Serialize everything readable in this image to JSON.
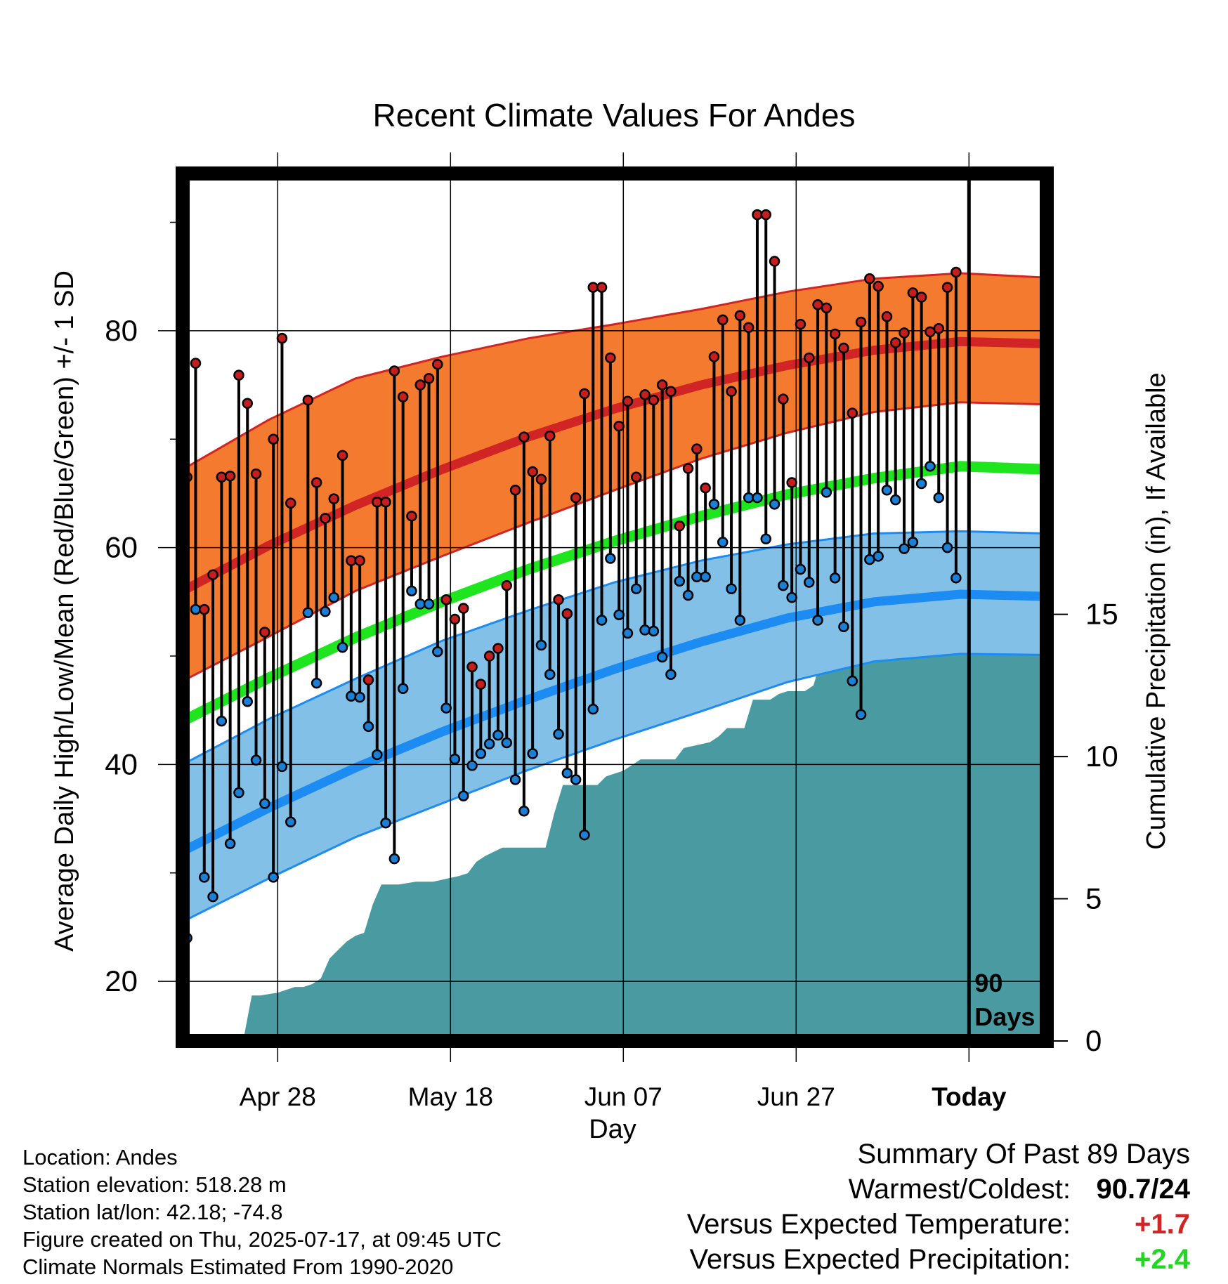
{
  "chart_data": {
    "type": "line",
    "title": "Recent Climate Values For Andes",
    "xlabel": "Day",
    "ylabel_left": "Average Daily High/Low/Mean (Red/Blue/Green) +/- 1 SD",
    "ylabel_right": "Cumulative Precipitation (in), If Available",
    "x_ticks": [
      "Apr 28",
      "May 18",
      "Jun 07",
      "Jun 27",
      "Today"
    ],
    "x_tick_days": [
      11,
      31,
      51,
      71,
      91
    ],
    "x_range_days": [
      0,
      100
    ],
    "today_day": 91,
    "ylim_left": [
      14.5,
      94.5
    ],
    "ylim_right": [
      0,
      30.5
    ],
    "y_ticks_left": [
      20,
      40,
      60,
      80
    ],
    "y_ticks_right": [
      0,
      5,
      10,
      15
    ],
    "today_label_1": "90",
    "today_label_2": "Days",
    "normal_high": [
      [
        0,
        56.0
      ],
      [
        10,
        60.2
      ],
      [
        20,
        63.9
      ],
      [
        30,
        67.2
      ],
      [
        40,
        70.2
      ],
      [
        50,
        72.8
      ],
      [
        60,
        75.0
      ],
      [
        70,
        76.8
      ],
      [
        80,
        78.2
      ],
      [
        90,
        79.0
      ],
      [
        100,
        78.8
      ]
    ],
    "normal_high_band_upper": [
      [
        0,
        67.2
      ],
      [
        10,
        71.8
      ],
      [
        20,
        75.6
      ],
      [
        30,
        77.6
      ],
      [
        40,
        79.3
      ],
      [
        50,
        80.6
      ],
      [
        60,
        82.0
      ],
      [
        70,
        83.6
      ],
      [
        80,
        84.8
      ],
      [
        90,
        85.3
      ],
      [
        100,
        84.9
      ]
    ],
    "normal_high_band_lower": [
      [
        0,
        47.7
      ],
      [
        10,
        51.8
      ],
      [
        20,
        56.0
      ],
      [
        30,
        59.2
      ],
      [
        40,
        62.3
      ],
      [
        50,
        65.3
      ],
      [
        60,
        68.2
      ],
      [
        70,
        70.6
      ],
      [
        80,
        72.5
      ],
      [
        90,
        73.4
      ],
      [
        100,
        73.2
      ]
    ],
    "normal_mean": [
      [
        0,
        44.0
      ],
      [
        10,
        48.0
      ],
      [
        20,
        51.7
      ],
      [
        30,
        55.0
      ],
      [
        40,
        58.0
      ],
      [
        50,
        60.6
      ],
      [
        60,
        62.9
      ],
      [
        70,
        64.9
      ],
      [
        80,
        66.4
      ],
      [
        90,
        67.5
      ],
      [
        100,
        67.2
      ]
    ],
    "normal_low": [
      [
        0,
        32.0
      ],
      [
        10,
        36.0
      ],
      [
        20,
        39.7
      ],
      [
        30,
        43.0
      ],
      [
        40,
        46.0
      ],
      [
        50,
        48.8
      ],
      [
        60,
        51.3
      ],
      [
        70,
        53.5
      ],
      [
        80,
        55.0
      ],
      [
        90,
        55.7
      ],
      [
        100,
        55.5
      ]
    ],
    "normal_low_band_upper": [
      [
        0,
        40.0
      ],
      [
        10,
        44.2
      ],
      [
        20,
        47.9
      ],
      [
        30,
        51.4
      ],
      [
        40,
        54.2
      ],
      [
        50,
        56.8
      ],
      [
        60,
        58.8
      ],
      [
        70,
        60.3
      ],
      [
        80,
        61.3
      ],
      [
        90,
        61.5
      ],
      [
        100,
        61.3
      ]
    ],
    "normal_low_band_lower": [
      [
        0,
        25.5
      ],
      [
        10,
        29.5
      ],
      [
        20,
        33.3
      ],
      [
        30,
        36.4
      ],
      [
        40,
        39.5
      ],
      [
        50,
        42.3
      ],
      [
        60,
        44.9
      ],
      [
        70,
        47.6
      ],
      [
        80,
        49.5
      ],
      [
        90,
        50.2
      ],
      [
        100,
        50.1
      ]
    ],
    "daily_high": [
      66.5,
      77,
      54.3,
      57.5,
      66.5,
      66.6,
      75.9,
      73.3,
      66.8,
      52.2,
      70,
      79.3,
      64.1,
      null,
      73.6,
      66,
      62.7,
      64.5,
      68.5,
      58.8,
      58.8,
      47.8,
      64.2,
      64.2,
      76.3,
      73.9,
      62.9,
      75,
      75.6,
      76.9,
      55.2,
      53.4,
      54.4,
      49,
      47.4,
      50,
      50.7,
      56.5,
      65.3,
      70.2,
      67,
      66.3,
      70.3,
      55.2,
      53.9,
      64.6,
      74.2,
      84,
      84,
      77.5,
      71.2,
      73.5,
      66.5,
      74.1,
      73.6,
      75,
      74.4,
      62,
      67.3,
      69.1,
      65.5,
      77.6,
      81,
      74.4,
      81.4,
      80.3,
      90.7,
      90.7,
      86.4,
      73.7,
      66,
      80.6,
      77.5,
      82.4,
      82.1,
      79.7,
      78.4,
      72.4,
      80.8,
      84.8,
      84.1,
      81.3,
      78.9,
      79.8,
      83.5,
      83.1,
      79.9,
      80.2,
      84,
      85.4
    ],
    "daily_low": [
      24,
      54.3,
      29.6,
      27.8,
      44,
      32.7,
      37.4,
      45.8,
      40.4,
      36.4,
      29.6,
      39.8,
      34.7,
      null,
      54,
      47.5,
      54.1,
      55.4,
      50.8,
      46.3,
      46.2,
      43.5,
      40.9,
      34.6,
      31.3,
      47,
      56,
      54.8,
      54.8,
      50.4,
      45.2,
      40.5,
      37.1,
      39.9,
      41,
      41.9,
      42.7,
      42,
      38.6,
      35.7,
      41,
      51,
      48.3,
      42.8,
      39.2,
      38.6,
      33.5,
      45.1,
      53.3,
      59,
      53.8,
      52.1,
      56.2,
      52.4,
      52.3,
      49.9,
      48.3,
      56.9,
      55.6,
      57.3,
      57.3,
      64,
      60.5,
      56.2,
      53.3,
      64.6,
      64.6,
      60.8,
      64,
      56.5,
      55.4,
      58,
      56.8,
      53.3,
      65.1,
      57.2,
      52.7,
      47.7,
      44.6,
      58.9,
      59.2,
      65.3,
      64.4,
      59.9,
      60.5,
      65.9,
      67.5,
      64.6,
      60,
      57.2
    ],
    "cumulative_precip": [
      [
        0,
        0
      ],
      [
        7,
        0
      ],
      [
        8,
        1.6
      ],
      [
        9,
        1.6
      ],
      [
        11,
        1.7
      ],
      [
        12,
        1.8
      ],
      [
        13,
        1.9
      ],
      [
        14,
        1.9
      ],
      [
        15,
        2.0
      ],
      [
        16,
        2.2
      ],
      [
        17,
        2.9
      ],
      [
        18,
        3.2
      ],
      [
        19,
        3.5
      ],
      [
        20,
        3.7
      ],
      [
        21,
        3.8
      ],
      [
        22,
        4.8
      ],
      [
        23,
        5.5
      ],
      [
        25,
        5.5
      ],
      [
        27,
        5.6
      ],
      [
        29,
        5.6
      ],
      [
        32,
        5.8
      ],
      [
        33,
        5.9
      ],
      [
        34,
        6.3
      ],
      [
        35,
        6.5
      ],
      [
        37,
        6.8
      ],
      [
        39,
        6.8
      ],
      [
        42,
        6.8
      ],
      [
        43,
        8.0
      ],
      [
        44,
        9.0
      ],
      [
        46,
        9.0
      ],
      [
        48,
        9.0
      ],
      [
        49,
        9.3
      ],
      [
        51,
        9.5
      ],
      [
        53,
        9.9
      ],
      [
        55,
        9.9
      ],
      [
        57,
        9.9
      ],
      [
        58,
        10.3
      ],
      [
        61,
        10.5
      ],
      [
        62,
        10.7
      ],
      [
        63,
        11.0
      ],
      [
        65,
        11.0
      ],
      [
        66,
        12.0
      ],
      [
        68,
        12.0
      ],
      [
        69,
        12.2
      ],
      [
        70,
        12.3
      ],
      [
        72,
        12.3
      ],
      [
        73,
        12.5
      ],
      [
        74,
        13.5
      ],
      [
        75,
        13.6
      ],
      [
        76,
        14.0
      ],
      [
        78,
        14.0
      ],
      [
        80,
        14.0
      ],
      [
        83,
        14.2
      ],
      [
        84,
        14.4
      ],
      [
        85,
        15.0
      ],
      [
        86,
        15.6
      ],
      [
        87,
        15.6
      ],
      [
        100,
        15.6
      ]
    ]
  },
  "location_line": "Location: Andes",
  "elevation_line": "Station elevation: 518.28 m",
  "latlon_line": "Station lat/lon: 42.18; -74.8",
  "created_line": "Figure created on Thu, 2025-07-17, at 09:45 UTC",
  "normals_line": "Climate Normals Estimated From 1990-2020",
  "summary": {
    "heading": "Summary Of Past 89 Days",
    "warmest_label": "Warmest/Coldest:",
    "warmest_value": "90.7/24",
    "temp_label": "Versus Expected Temperature:",
    "temp_value": "+1.7",
    "precip_label": "Versus Expected Precipitation:",
    "precip_value": "+2.4"
  },
  "colors": {
    "high_band": "#f47a30",
    "high_line": "#d12424",
    "mean_line": "#1fe51f",
    "low_band": "#82c0e8",
    "low_line": "#1c8cf2",
    "precip_fill": "#4a9aa2",
    "high_dot": "#c61e1e",
    "low_dot": "#1c7fd6",
    "temp_value": "#d12424",
    "precip_value": "#1fd81f"
  }
}
